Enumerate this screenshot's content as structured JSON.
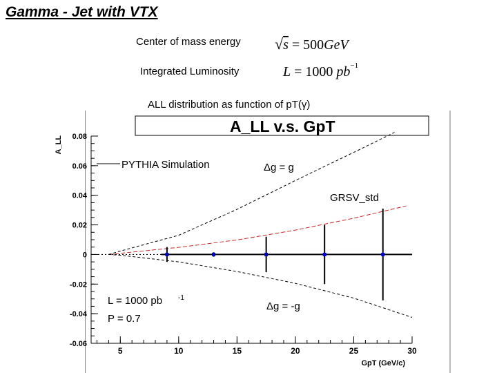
{
  "slide": {
    "title": "Gamma - Jet with VTX",
    "energy_label": "Center of mass energy",
    "energy_formula": {
      "sqrt_s": "s",
      "equals": " = 500",
      "unit": "GeV"
    },
    "lumi_label": "Integrated Luminosity",
    "lumi_formula": {
      "lhs": "L",
      "equals": " = 1000 ",
      "unit": "pb",
      "exponent": "−1"
    },
    "subtitle": "ALL distribution as function of pT(γ)"
  },
  "chart_data": {
    "type": "scatter",
    "title": "A_LL v.s. GpT",
    "xlabel": "GpT (GeV/c)",
    "ylabel": "A_LL",
    "xlim": [
      2.5,
      30
    ],
    "ylim": [
      -0.06,
      0.08
    ],
    "x_ticks": [
      "5",
      "10",
      "15",
      "20",
      "25",
      "30"
    ],
    "y_ticks": [
      "-0.06",
      "-0.04",
      "-0.02",
      "0",
      "0.02",
      "0.04",
      "0.06",
      "0.08"
    ],
    "legend": {
      "line_label": "PYTHIA Simulation",
      "position": "top-left"
    },
    "series": [
      {
        "name": "PYTHIA Simulation",
        "kind": "points",
        "x": [
          9.0,
          13.0,
          17.5,
          22.5,
          27.5
        ],
        "y": [
          0.0,
          0.0,
          0.0,
          0.0,
          0.0
        ],
        "err": [
          0.005,
          0.0015,
          0.012,
          0.02,
          0.031
        ]
      }
    ],
    "curves": [
      {
        "label": "Δg = g",
        "style": "dashed-black",
        "x": [
          4,
          5,
          10,
          15,
          20,
          25,
          28.5
        ],
        "y": [
          0.0,
          0.0023,
          0.013,
          0.0305,
          0.05,
          0.069,
          0.0825
        ]
      },
      {
        "label": "GRSV_std",
        "style": "dashed-red",
        "x": [
          4,
          5,
          10,
          15,
          20,
          25,
          29.5
        ],
        "y": [
          0.0,
          0.0008,
          0.0048,
          0.0098,
          0.0165,
          0.0245,
          0.0328
        ]
      },
      {
        "label": "Δg = -g",
        "style": "dashed-black",
        "x": [
          4,
          5,
          10,
          15,
          20,
          25,
          30
        ],
        "y": [
          0.0,
          -0.0005,
          -0.005,
          -0.0115,
          -0.0195,
          -0.0295,
          -0.0425
        ]
      }
    ],
    "annotations": {
      "dg_pos": "Δg = g",
      "grsv": "GRSV_std",
      "dg_neg": "Δg = -g",
      "lumi": "L = 1000 pb ",
      "lumi_exp": "-1",
      "pol": "P = 0.7"
    },
    "colors": {
      "points": "#0000cc",
      "grsv": "#cc2222",
      "lines": "#000000"
    },
    "grid": false
  }
}
